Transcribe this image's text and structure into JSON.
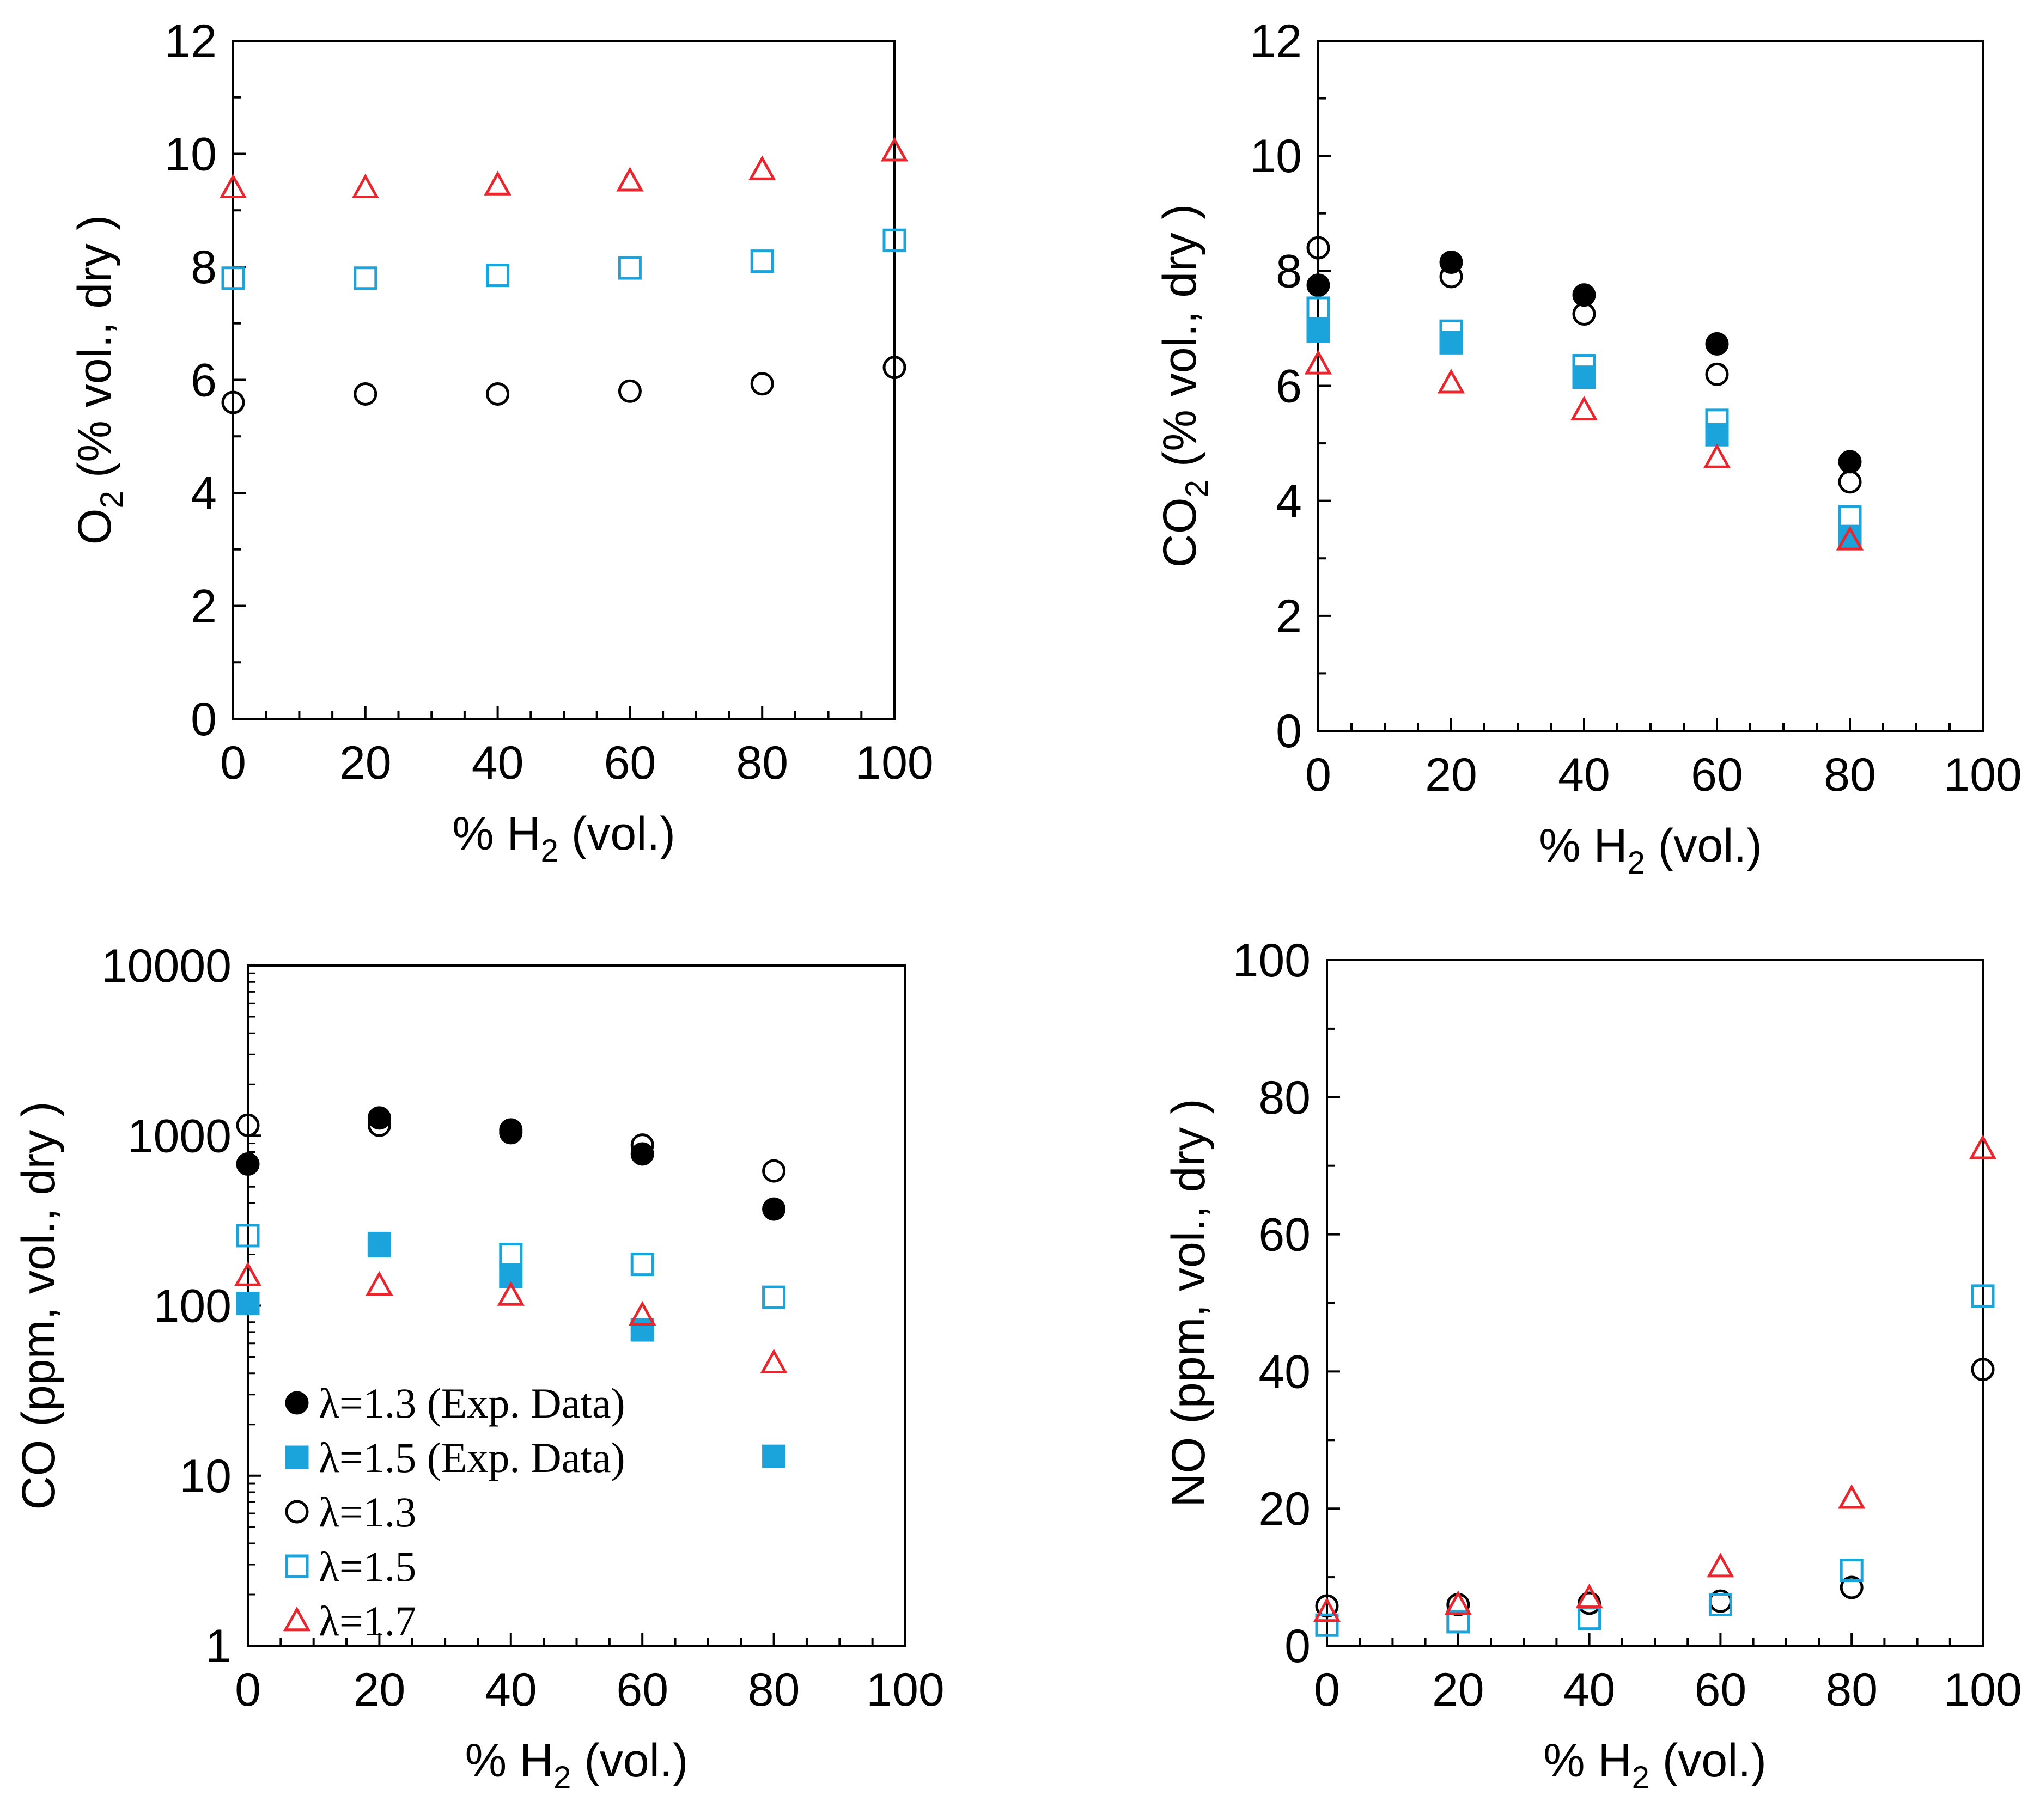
{
  "colors": {
    "lambda_1_3": "#000000",
    "lambda_1_5": "#1ba3dc",
    "lambda_1_7": "#e8262d"
  },
  "legend": [
    {
      "label": "λ=1.3 (Exp. Data)",
      "marker": "filled-circle",
      "color": "#000000"
    },
    {
      "label": "λ=1.5 (Exp. Data)",
      "marker": "filled-square",
      "color": "#1ba3dc"
    },
    {
      "label": "λ=1.3",
      "marker": "open-circle",
      "color": "#000000"
    },
    {
      "label": "λ=1.5",
      "marker": "open-square",
      "color": "#1ba3dc"
    },
    {
      "label": "λ=1.7",
      "marker": "open-triangle",
      "color": "#e8262d"
    }
  ],
  "chart_data": [
    {
      "id": "o2",
      "type": "scatter",
      "xlabel": "% H",
      "xlabel_sub": "2",
      "xlabel_tail": " (vol.)",
      "ylabel": "O",
      "ylabel_sub": "2",
      "ylabel_tail": " (% vol., dry )",
      "xlim": [
        0,
        100
      ],
      "ylim": [
        0,
        12
      ],
      "yscale": "linear",
      "xticks": [
        "0",
        "20",
        "40",
        "60",
        "80",
        "100"
      ],
      "yticks": [
        "0",
        "2",
        "4",
        "6",
        "8",
        "10",
        "12"
      ],
      "series": [
        {
          "marker": "open-circle",
          "color": "#000000",
          "x": [
            0,
            20,
            40,
            60,
            80,
            100
          ],
          "y": [
            5.6,
            5.75,
            5.75,
            5.8,
            5.93,
            6.22
          ]
        },
        {
          "marker": "open-square",
          "color": "#1ba3dc",
          "x": [
            0,
            20,
            40,
            60,
            80,
            100
          ],
          "y": [
            7.8,
            7.8,
            7.85,
            7.98,
            8.1,
            8.47
          ]
        },
        {
          "marker": "open-triangle",
          "color": "#e8262d",
          "x": [
            0,
            20,
            40,
            60,
            80,
            100
          ],
          "y": [
            9.4,
            9.4,
            9.45,
            9.52,
            9.72,
            10.05
          ]
        }
      ]
    },
    {
      "id": "co2",
      "type": "scatter",
      "xlabel": "% H",
      "xlabel_sub": "2",
      "xlabel_tail": " (vol.)",
      "ylabel": "CO",
      "ylabel_sub": "2",
      "ylabel_tail": " (% vol., dry )",
      "xlim": [
        0,
        100
      ],
      "ylim": [
        0,
        12
      ],
      "yscale": "linear",
      "xticks": [
        "0",
        "20",
        "40",
        "60",
        "80",
        "100"
      ],
      "yticks": [
        "0",
        "2",
        "4",
        "6",
        "8",
        "10",
        "12"
      ],
      "series": [
        {
          "marker": "filled-circle",
          "color": "#000000",
          "x": [
            0,
            20,
            40,
            60,
            80
          ],
          "y": [
            7.75,
            8.15,
            7.58,
            6.73,
            4.68
          ]
        },
        {
          "marker": "filled-square",
          "color": "#1ba3dc",
          "x": [
            0,
            20,
            40,
            60,
            80
          ],
          "y": [
            6.95,
            6.75,
            6.15,
            5.15,
            3.38
          ]
        },
        {
          "marker": "open-circle",
          "color": "#000000",
          "x": [
            0,
            20,
            40,
            60,
            80
          ],
          "y": [
            8.4,
            7.9,
            7.25,
            6.2,
            4.33
          ]
        },
        {
          "marker": "open-square",
          "color": "#1ba3dc",
          "x": [
            0,
            20,
            40,
            60,
            80
          ],
          "y": [
            7.35,
            6.95,
            6.35,
            5.4,
            3.72
          ]
        },
        {
          "marker": "open-triangle",
          "color": "#e8262d",
          "x": [
            0,
            20,
            40,
            60,
            80
          ],
          "y": [
            6.38,
            6.05,
            5.58,
            4.75,
            3.32
          ]
        }
      ]
    },
    {
      "id": "co",
      "type": "scatter",
      "xlabel": "% H",
      "xlabel_sub": "2",
      "xlabel_tail": " (vol.)",
      "ylabel": "CO (ppm, vol., dry )",
      "ylabel_sub": "",
      "ylabel_tail": "",
      "xlim": [
        0,
        100
      ],
      "ylim": [
        1,
        10000
      ],
      "yscale": "log",
      "xticks": [
        "0",
        "20",
        "40",
        "60",
        "80",
        "100"
      ],
      "yticks": [
        "1",
        "10",
        "100",
        "1000",
        "10000"
      ],
      "series": [
        {
          "marker": "filled-circle",
          "color": "#000000",
          "x": [
            0,
            20,
            40,
            60,
            80
          ],
          "y": [
            680,
            1270,
            1040,
            780,
            370
          ]
        },
        {
          "marker": "filled-square",
          "color": "#1ba3dc",
          "x": [
            0,
            20,
            40,
            60,
            80
          ],
          "y": [
            103,
            225,
            148,
            72,
            13
          ]
        },
        {
          "marker": "open-circle",
          "color": "#000000",
          "x": [
            0,
            20,
            40,
            60,
            80
          ],
          "y": [
            1150,
            1150,
            1080,
            880,
            620
          ]
        },
        {
          "marker": "open-square",
          "color": "#1ba3dc",
          "x": [
            0,
            20,
            40,
            60,
            80
          ],
          "y": [
            258,
            232,
            200,
            175,
            112
          ]
        },
        {
          "marker": "open-triangle",
          "color": "#e8262d",
          "x": [
            0,
            20,
            40,
            60,
            80
          ],
          "y": [
            150,
            132,
            115,
            88,
            46
          ]
        }
      ]
    },
    {
      "id": "no",
      "type": "scatter",
      "xlabel": "% H",
      "xlabel_sub": "2",
      "xlabel_tail": " (vol.)",
      "ylabel": "NO (ppm, vol., dry )",
      "ylabel_sub": "",
      "ylabel_tail": "",
      "xlim": [
        0,
        100
      ],
      "ylim": [
        0,
        100
      ],
      "yscale": "linear",
      "xticks": [
        "0",
        "20",
        "40",
        "60",
        "80",
        "100"
      ],
      "yticks": [
        "0",
        "20",
        "40",
        "60",
        "80",
        "100"
      ],
      "series": [
        {
          "marker": "open-circle",
          "color": "#000000",
          "x": [
            0,
            20,
            40,
            60,
            80,
            100
          ],
          "y": [
            5.8,
            6.0,
            6.2,
            6.5,
            8.5,
            40.3
          ]
        },
        {
          "marker": "open-square",
          "color": "#1ba3dc",
          "x": [
            0,
            20,
            40,
            60,
            80,
            100
          ],
          "y": [
            3.0,
            3.5,
            4.0,
            6.0,
            11.0,
            51.0
          ]
        },
        {
          "marker": "open-triangle",
          "color": "#e8262d",
          "x": [
            0,
            20,
            40,
            60,
            80,
            100
          ],
          "y": [
            5.0,
            6.0,
            7.0,
            11.5,
            21.5,
            72.5
          ]
        }
      ]
    }
  ]
}
